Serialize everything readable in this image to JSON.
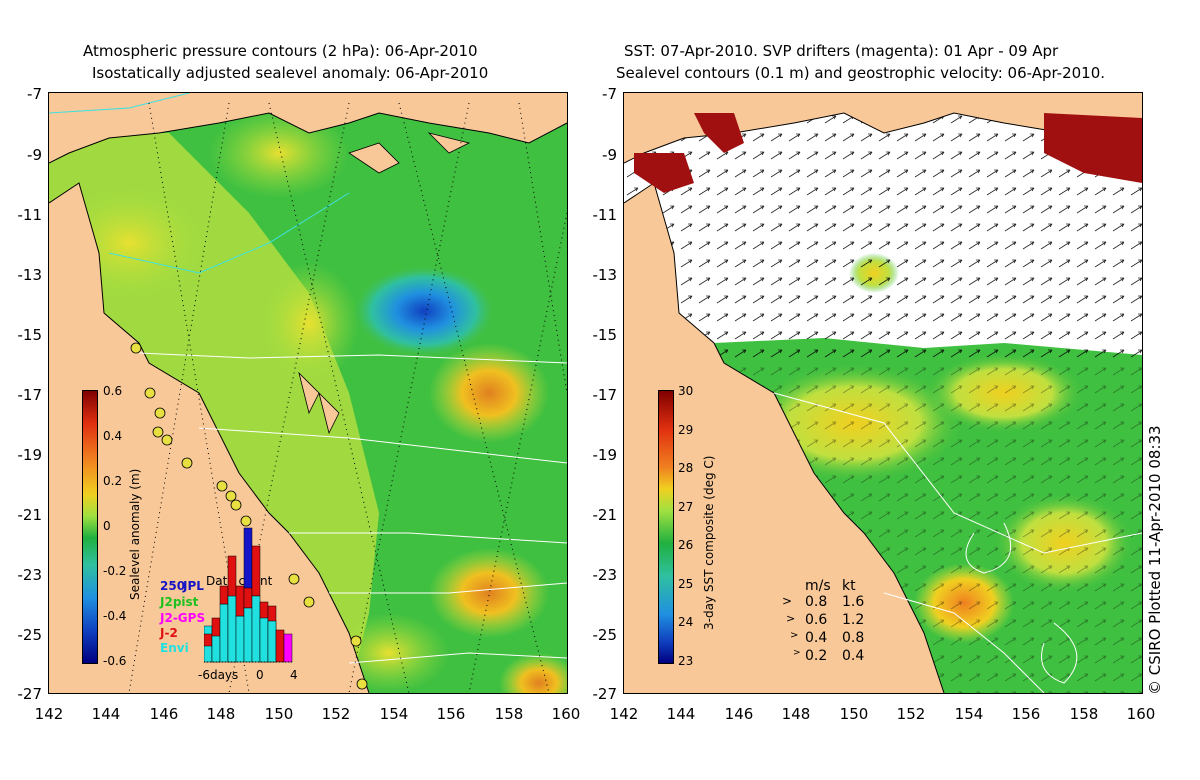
{
  "left_panel": {
    "title_line1": "Atmospheric pressure contours (2 hPa): 06-Apr-2010",
    "title_line2": "Isostatically adjusted sealevel anomaly: 06-Apr-2010",
    "y_ticks": [
      "-7",
      "-9",
      "-11",
      "-13",
      "-15",
      "-17",
      "-19",
      "-21",
      "-23",
      "-25",
      "-27"
    ],
    "x_ticks": [
      "142",
      "144",
      "146",
      "148",
      "150",
      "152",
      "154",
      "156",
      "158",
      "160"
    ],
    "colorbar": {
      "label": "Sealevel anomaly (m)",
      "ticks": [
        "0.6",
        "0.4",
        "0.2",
        "0",
        "-0.2",
        "-0.4",
        "-0.6"
      ]
    },
    "data_count": {
      "title": "Data count",
      "max_label": "250",
      "x_labels": [
        "-6days",
        "0",
        "4"
      ],
      "legend": [
        {
          "name": "JPL",
          "color": "#1414c8"
        },
        {
          "name": "J2pist",
          "color": "#20c020"
        },
        {
          "name": "J2-GPS",
          "color": "#ff00ff"
        },
        {
          "name": "J-2",
          "color": "#e01010"
        },
        {
          "name": "Envi",
          "color": "#20e0e0"
        }
      ]
    }
  },
  "right_panel": {
    "title_line1": "SST: 07-Apr-2010. SVP drifters (magenta): 01 Apr - 09 Apr",
    "title_line2": "Sealevel contours (0.1 m) and geostrophic velocity: 06-Apr-2010.",
    "y_ticks": [
      "-7",
      "-9",
      "-11",
      "-13",
      "-15",
      "-17",
      "-19",
      "-21",
      "-23",
      "-25",
      "-27"
    ],
    "x_ticks": [
      "142",
      "144",
      "146",
      "148",
      "150",
      "152",
      "154",
      "156",
      "158",
      "160"
    ],
    "colorbar": {
      "label": "3-day SST composite (deg C)",
      "ticks": [
        "30",
        "29",
        "28",
        "27",
        "26",
        "25",
        "24",
        "23"
      ]
    },
    "velocity_key": {
      "header_ms": "m/s",
      "header_kt": "kt",
      "rows": [
        {
          "ms": "0.8",
          "kt": "1.6"
        },
        {
          "ms": "0.6",
          "kt": "1.2"
        },
        {
          "ms": "0.4",
          "kt": "0.8"
        },
        {
          "ms": "0.2",
          "kt": "0.4"
        }
      ]
    }
  },
  "credit": "© CSIRO Plotted 11-Apr-2010 08:33",
  "colors": {
    "land": "#f8c898",
    "ocean_green": "#48c048",
    "ocean_yellowgreen": "#b0e040",
    "ocean_blue": "#2080e0",
    "cloud": "#ffffff"
  }
}
